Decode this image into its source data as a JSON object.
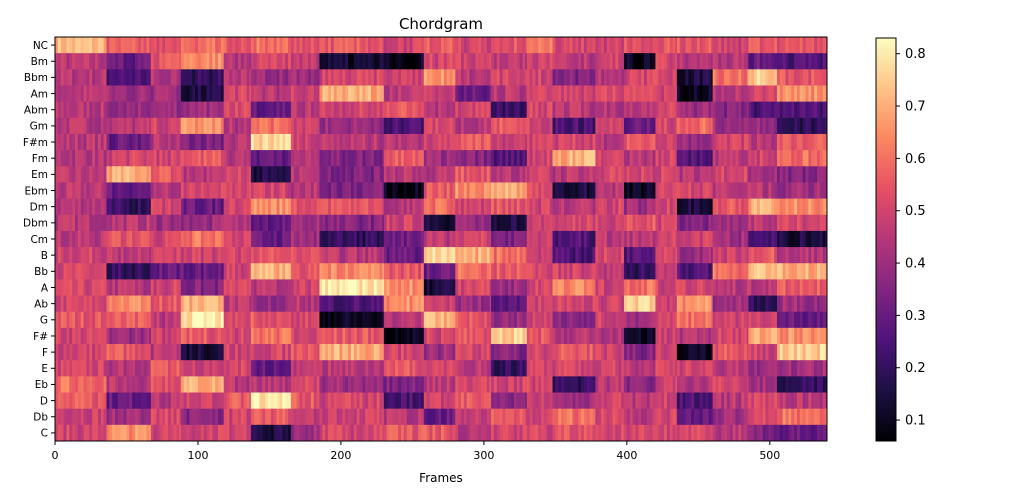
{
  "chart_data": {
    "type": "heatmap",
    "title": "Chordgram",
    "xlabel": "Frames",
    "ylabel": "",
    "xlim": [
      0,
      540
    ],
    "x_ticks": [
      0,
      100,
      200,
      300,
      400,
      500
    ],
    "y_categories_top_to_bottom": [
      "NC",
      "Bm",
      "Bbm",
      "Am",
      "Abm",
      "Gm",
      "F#m",
      "Fm",
      "Em",
      "Ebm",
      "Dm",
      "Dbm",
      "Cm",
      "B",
      "Bb",
      "A",
      "Ab",
      "G",
      "F#",
      "F",
      "E",
      "Eb",
      "D",
      "Db",
      "C"
    ],
    "colormap": "magma",
    "colorbar": {
      "vmin": 0.06,
      "vmax": 0.83,
      "ticks": [
        0.1,
        0.2,
        0.3,
        0.4,
        0.5,
        0.6,
        0.7,
        0.8
      ]
    },
    "segment_boundaries": [
      0,
      36,
      67,
      88,
      118,
      137,
      165,
      185,
      230,
      258,
      280,
      305,
      330,
      348,
      378,
      398,
      420,
      435,
      460,
      485,
      505,
      540
    ],
    "segment_values": [
      {
        "NC": 0.72,
        "Bm": 0.45,
        "Bbm": 0.45,
        "Am": 0.45,
        "Abm": 0.45,
        "Gm": 0.45,
        "F#m": 0.45,
        "Fm": 0.45,
        "Em": 0.45,
        "Ebm": 0.45,
        "Dm": 0.45,
        "Dbm": 0.45,
        "Cm": 0.45,
        "B": 0.5,
        "Bb": 0.5,
        "A": 0.5,
        "Ab": 0.5,
        "G": 0.55,
        "F#": 0.5,
        "F": 0.5,
        "E": 0.5,
        "Eb": 0.6,
        "D": 0.55,
        "Db": 0.5,
        "C": 0.5
      },
      {
        "NC": 0.55,
        "Bm": 0.3,
        "Bbm": 0.25,
        "Am": 0.4,
        "Abm": 0.4,
        "Gm": 0.45,
        "F#m": 0.3,
        "Fm": 0.5,
        "Em": 0.7,
        "Ebm": 0.3,
        "Dm": 0.2,
        "Dbm": 0.45,
        "Cm": 0.55,
        "B": 0.45,
        "Bb": 0.2,
        "A": 0.45,
        "Ab": 0.65,
        "G": 0.55,
        "F#": 0.4,
        "F": 0.55,
        "E": 0.45,
        "Eb": 0.45,
        "D": 0.3,
        "Db": 0.4,
        "C": 0.65
      },
      {
        "NC": 0.55,
        "Bm": 0.55,
        "Bbm": 0.45,
        "Am": 0.4,
        "Abm": 0.4,
        "Gm": 0.5,
        "F#m": 0.45,
        "Fm": 0.5,
        "Em": 0.55,
        "Ebm": 0.45,
        "Dm": 0.5,
        "Dbm": 0.4,
        "Cm": 0.5,
        "B": 0.5,
        "Bb": 0.3,
        "A": 0.5,
        "Ab": 0.55,
        "G": 0.45,
        "F#": 0.5,
        "F": 0.45,
        "E": 0.55,
        "Eb": 0.55,
        "D": 0.45,
        "Db": 0.5,
        "C": 0.5
      },
      {
        "NC": 0.6,
        "Bm": 0.65,
        "Bbm": 0.2,
        "Am": 0.15,
        "Abm": 0.4,
        "Gm": 0.65,
        "F#m": 0.35,
        "Fm": 0.55,
        "Em": 0.45,
        "Ebm": 0.5,
        "Dm": 0.3,
        "Dbm": 0.4,
        "Cm": 0.6,
        "B": 0.5,
        "Bb": 0.3,
        "A": 0.35,
        "Ab": 0.7,
        "G": 0.8,
        "F#": 0.55,
        "F": 0.15,
        "E": 0.5,
        "Eb": 0.7,
        "D": 0.5,
        "Db": 0.35,
        "C": 0.5
      },
      {
        "NC": 0.55,
        "Bm": 0.45,
        "Bbm": 0.45,
        "Am": 0.5,
        "Abm": 0.5,
        "Gm": 0.45,
        "F#m": 0.45,
        "Fm": 0.45,
        "Em": 0.5,
        "Ebm": 0.5,
        "Dm": 0.5,
        "Dbm": 0.45,
        "Cm": 0.5,
        "B": 0.5,
        "Bb": 0.5,
        "A": 0.5,
        "Ab": 0.45,
        "G": 0.5,
        "F#": 0.5,
        "F": 0.5,
        "E": 0.5,
        "Eb": 0.45,
        "D": 0.55,
        "Db": 0.5,
        "C": 0.5
      },
      {
        "NC": 0.6,
        "Bm": 0.5,
        "Bbm": 0.4,
        "Am": 0.45,
        "Abm": 0.3,
        "Gm": 0.6,
        "F#m": 0.75,
        "Fm": 0.3,
        "Em": 0.15,
        "Ebm": 0.5,
        "Dm": 0.65,
        "Dbm": 0.3,
        "Cm": 0.3,
        "B": 0.55,
        "Bb": 0.7,
        "A": 0.45,
        "Ab": 0.4,
        "G": 0.55,
        "F#": 0.6,
        "F": 0.5,
        "E": 0.3,
        "Eb": 0.45,
        "D": 0.8,
        "Db": 0.55,
        "C": 0.15
      },
      {
        "NC": 0.55,
        "Bm": 0.45,
        "Bbm": 0.4,
        "Am": 0.5,
        "Abm": 0.45,
        "Gm": 0.5,
        "F#m": 0.5,
        "Fm": 0.45,
        "Em": 0.45,
        "Ebm": 0.45,
        "Dm": 0.55,
        "Dbm": 0.4,
        "Cm": 0.4,
        "B": 0.55,
        "Bb": 0.55,
        "A": 0.5,
        "Ab": 0.45,
        "G": 0.5,
        "F#": 0.5,
        "F": 0.55,
        "E": 0.45,
        "Eb": 0.5,
        "D": 0.55,
        "Db": 0.45,
        "C": 0.4
      },
      {
        "NC": 0.55,
        "Bm": 0.12,
        "Bbm": 0.5,
        "Am": 0.7,
        "Abm": 0.5,
        "Gm": 0.4,
        "F#m": 0.45,
        "Fm": 0.35,
        "Em": 0.35,
        "Ebm": 0.35,
        "Dm": 0.55,
        "Dbm": 0.35,
        "Cm": 0.2,
        "B": 0.45,
        "Bb": 0.65,
        "A": 0.8,
        "Ab": 0.25,
        "G": 0.1,
        "F#": 0.55,
        "F": 0.7,
        "E": 0.45,
        "Eb": 0.4,
        "D": 0.5,
        "Db": 0.5,
        "C": 0.5
      },
      {
        "NC": 0.5,
        "Bm": 0.1,
        "Bbm": 0.5,
        "Am": 0.45,
        "Abm": 0.55,
        "Gm": 0.25,
        "F#m": 0.45,
        "Fm": 0.55,
        "Em": 0.45,
        "Ebm": 0.1,
        "Dm": 0.45,
        "Dbm": 0.5,
        "Cm": 0.3,
        "B": 0.3,
        "Bb": 0.55,
        "A": 0.65,
        "Ab": 0.65,
        "G": 0.45,
        "F#": 0.1,
        "F": 0.5,
        "E": 0.55,
        "Eb": 0.35,
        "D": 0.25,
        "Db": 0.45,
        "C": 0.55
      },
      {
        "NC": 0.55,
        "Bm": 0.5,
        "Bbm": 0.65,
        "Am": 0.5,
        "Abm": 0.45,
        "Gm": 0.5,
        "F#m": 0.5,
        "Fm": 0.4,
        "Em": 0.45,
        "Ebm": 0.55,
        "Dm": 0.6,
        "Dbm": 0.15,
        "Cm": 0.45,
        "B": 0.75,
        "Bb": 0.3,
        "A": 0.15,
        "Ab": 0.5,
        "G": 0.7,
        "F#": 0.5,
        "F": 0.4,
        "E": 0.5,
        "Eb": 0.45,
        "D": 0.5,
        "Db": 0.3,
        "C": 0.55
      },
      {
        "NC": 0.5,
        "Bm": 0.5,
        "Bbm": 0.45,
        "Am": 0.3,
        "Abm": 0.5,
        "Gm": 0.45,
        "F#m": 0.55,
        "Fm": 0.35,
        "Em": 0.55,
        "Ebm": 0.65,
        "Dm": 0.5,
        "Dbm": 0.4,
        "Cm": 0.5,
        "B": 0.7,
        "Bb": 0.6,
        "A": 0.5,
        "Ab": 0.4,
        "G": 0.55,
        "F#": 0.55,
        "F": 0.5,
        "E": 0.45,
        "Eb": 0.5,
        "D": 0.55,
        "Db": 0.5,
        "C": 0.45
      },
      {
        "NC": 0.55,
        "Bm": 0.45,
        "Bbm": 0.5,
        "Am": 0.45,
        "Abm": 0.2,
        "Gm": 0.55,
        "F#m": 0.45,
        "Fm": 0.25,
        "Em": 0.45,
        "Ebm": 0.7,
        "Dm": 0.55,
        "Dbm": 0.15,
        "Cm": 0.35,
        "B": 0.6,
        "Bb": 0.55,
        "A": 0.4,
        "Ab": 0.3,
        "G": 0.4,
        "F#": 0.75,
        "F": 0.35,
        "E": 0.2,
        "Eb": 0.5,
        "D": 0.35,
        "Db": 0.55,
        "C": 0.5
      },
      {
        "NC": 0.6,
        "Bm": 0.5,
        "Bbm": 0.5,
        "Am": 0.5,
        "Abm": 0.5,
        "Gm": 0.5,
        "F#m": 0.5,
        "Fm": 0.5,
        "Em": 0.5,
        "Ebm": 0.5,
        "Dm": 0.5,
        "Dbm": 0.5,
        "Cm": 0.5,
        "B": 0.5,
        "Bb": 0.5,
        "A": 0.5,
        "Ab": 0.5,
        "G": 0.5,
        "F#": 0.55,
        "F": 0.5,
        "E": 0.5,
        "Eb": 0.5,
        "D": 0.5,
        "Db": 0.5,
        "C": 0.5
      },
      {
        "NC": 0.5,
        "Bm": 0.45,
        "Bbm": 0.35,
        "Am": 0.5,
        "Abm": 0.45,
        "Gm": 0.25,
        "F#m": 0.5,
        "Fm": 0.7,
        "Em": 0.45,
        "Ebm": 0.15,
        "Dm": 0.45,
        "Dbm": 0.5,
        "Cm": 0.25,
        "B": 0.25,
        "Bb": 0.5,
        "A": 0.65,
        "Ab": 0.5,
        "G": 0.35,
        "F#": 0.45,
        "F": 0.55,
        "E": 0.5,
        "Eb": 0.2,
        "D": 0.4,
        "Db": 0.6,
        "C": 0.55
      },
      {
        "NC": 0.5,
        "Bm": 0.5,
        "Bbm": 0.45,
        "Am": 0.5,
        "Abm": 0.45,
        "Gm": 0.5,
        "F#m": 0.45,
        "Fm": 0.5,
        "Em": 0.5,
        "Ebm": 0.45,
        "Dm": 0.5,
        "Dbm": 0.5,
        "Cm": 0.45,
        "B": 0.5,
        "Bb": 0.45,
        "A": 0.5,
        "Ab": 0.5,
        "G": 0.5,
        "F#": 0.45,
        "F": 0.5,
        "E": 0.5,
        "Eb": 0.45,
        "D": 0.5,
        "Db": 0.5,
        "C": 0.5
      },
      {
        "NC": 0.55,
        "Bm": 0.1,
        "Bbm": 0.5,
        "Am": 0.55,
        "Abm": 0.45,
        "Gm": 0.3,
        "F#m": 0.55,
        "Fm": 0.45,
        "Em": 0.5,
        "Ebm": 0.1,
        "Dm": 0.4,
        "Dbm": 0.55,
        "Cm": 0.45,
        "B": 0.25,
        "Bb": 0.2,
        "A": 0.6,
        "Ab": 0.75,
        "G": 0.4,
        "F#": 0.1,
        "F": 0.35,
        "E": 0.45,
        "Eb": 0.35,
        "D": 0.45,
        "Db": 0.45,
        "C": 0.5
      },
      {
        "NC": 0.55,
        "Bm": 0.5,
        "Bbm": 0.5,
        "Am": 0.5,
        "Abm": 0.5,
        "Gm": 0.5,
        "F#m": 0.5,
        "Fm": 0.5,
        "Em": 0.5,
        "Ebm": 0.5,
        "Dm": 0.5,
        "Dbm": 0.5,
        "Cm": 0.5,
        "B": 0.5,
        "Bb": 0.5,
        "A": 0.5,
        "Ab": 0.5,
        "G": 0.5,
        "F#": 0.5,
        "F": 0.5,
        "E": 0.5,
        "Eb": 0.5,
        "D": 0.5,
        "Db": 0.5,
        "C": 0.5
      },
      {
        "NC": 0.55,
        "Bm": 0.45,
        "Bbm": 0.15,
        "Am": 0.1,
        "Abm": 0.4,
        "Gm": 0.6,
        "F#m": 0.4,
        "Fm": 0.25,
        "Em": 0.45,
        "Ebm": 0.5,
        "Dm": 0.15,
        "Dbm": 0.35,
        "Cm": 0.5,
        "B": 0.4,
        "Bb": 0.25,
        "A": 0.5,
        "Ab": 0.65,
        "G": 0.6,
        "F#": 0.45,
        "F": 0.1,
        "E": 0.5,
        "Eb": 0.45,
        "D": 0.25,
        "Db": 0.3,
        "C": 0.5
      },
      {
        "NC": 0.5,
        "Bm": 0.45,
        "Bbm": 0.6,
        "Am": 0.45,
        "Abm": 0.35,
        "Gm": 0.4,
        "F#m": 0.5,
        "Fm": 0.45,
        "Em": 0.5,
        "Ebm": 0.45,
        "Dm": 0.55,
        "Dbm": 0.4,
        "Cm": 0.4,
        "B": 0.5,
        "Bb": 0.6,
        "A": 0.45,
        "Ab": 0.4,
        "G": 0.5,
        "F#": 0.5,
        "F": 0.55,
        "E": 0.45,
        "Eb": 0.5,
        "D": 0.45,
        "Db": 0.4,
        "C": 0.45
      },
      {
        "NC": 0.55,
        "Bm": 0.3,
        "Bbm": 0.75,
        "Am": 0.5,
        "Abm": 0.25,
        "Gm": 0.4,
        "F#m": 0.45,
        "Fm": 0.5,
        "Em": 0.4,
        "Ebm": 0.45,
        "Dm": 0.7,
        "Dbm": 0.45,
        "Cm": 0.25,
        "B": 0.55,
        "Bb": 0.75,
        "A": 0.45,
        "Ab": 0.2,
        "G": 0.5,
        "F#": 0.7,
        "F": 0.5,
        "E": 0.4,
        "Eb": 0.4,
        "D": 0.5,
        "Db": 0.5,
        "C": 0.35
      },
      {
        "NC": 0.55,
        "Bm": 0.25,
        "Bbm": 0.55,
        "Am": 0.65,
        "Abm": 0.25,
        "Gm": 0.2,
        "F#m": 0.55,
        "Fm": 0.6,
        "Em": 0.35,
        "Ebm": 0.4,
        "Dm": 0.65,
        "Dbm": 0.5,
        "Cm": 0.15,
        "B": 0.45,
        "Bb": 0.7,
        "A": 0.55,
        "Ab": 0.4,
        "G": 0.3,
        "F#": 0.65,
        "F": 0.75,
        "E": 0.4,
        "Eb": 0.2,
        "D": 0.45,
        "Db": 0.6,
        "C": 0.3
      }
    ]
  }
}
